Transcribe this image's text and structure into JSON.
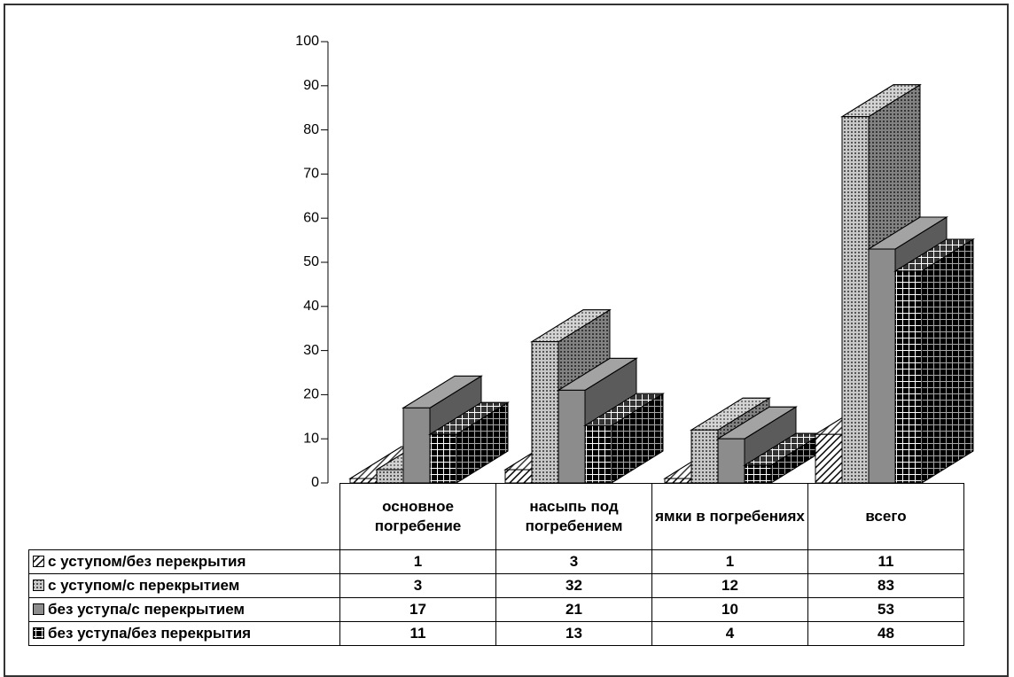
{
  "chart_data": {
    "type": "bar3d",
    "categories": [
      "основное погребение",
      "насыпь под погребением",
      "ямки в погребениях",
      "всего"
    ],
    "series": [
      {
        "name": "с уступом/без перекрытия",
        "color": "#ffffff",
        "values": [
          1,
          3,
          1,
          11
        ]
      },
      {
        "name": "с уступом/с перекрытием",
        "color": "#b0b0b0",
        "values": [
          3,
          32,
          12,
          83
        ]
      },
      {
        "name": "без уступа/с перекрытием",
        "color": "#8c8c8c",
        "values": [
          17,
          21,
          10,
          53
        ]
      },
      {
        "name": "без уступа/без перекрытия",
        "color": "#000000",
        "values": [
          11,
          13,
          4,
          48
        ]
      }
    ],
    "ylim": [
      0,
      100
    ],
    "yticks": [
      0,
      10,
      20,
      30,
      40,
      50,
      60,
      70,
      80,
      90,
      100
    ]
  }
}
